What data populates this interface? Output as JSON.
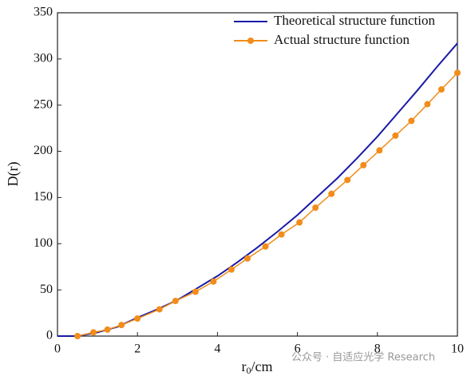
{
  "chart_data": {
    "type": "line",
    "x_label": [
      "r",
      "0",
      "/cm"
    ],
    "y_label": "D(r)",
    "xlim": [
      0,
      10
    ],
    "xticks": [
      0,
      2,
      4,
      6,
      8,
      10
    ],
    "ylim": [
      0,
      350
    ],
    "yticks": [
      0,
      50,
      100,
      150,
      200,
      250,
      300,
      350
    ],
    "legend": "top-right",
    "series": [
      {
        "name": "Theoretical structure function",
        "color": "#1a1aa6",
        "marker": false,
        "x": [
          0,
          0.5,
          1,
          1.5,
          2,
          2.5,
          3,
          3.5,
          4,
          4.5,
          5,
          5.5,
          6,
          6.5,
          7,
          7.5,
          8,
          8.5,
          9,
          9.5,
          10
        ],
        "values": [
          0,
          0,
          4,
          10,
          20,
          29,
          39,
          52,
          65,
          80,
          96,
          113,
          131,
          151,
          171,
          193,
          216,
          241,
          266,
          292,
          317
        ]
      },
      {
        "name": "Actual structure function",
        "color": "#f28c1a",
        "marker": true,
        "x": [
          0.5,
          0.9,
          1.25,
          1.6,
          2.0,
          2.55,
          2.95,
          3.45,
          3.9,
          4.35,
          4.75,
          5.2,
          5.6,
          6.05,
          6.45,
          6.85,
          7.25,
          7.65,
          8.05,
          8.45,
          8.85,
          9.25,
          9.6,
          10
        ],
        "values": [
          0,
          4,
          7,
          12,
          19,
          29,
          38,
          48,
          59,
          72,
          84,
          97,
          110,
          123,
          139,
          154,
          169,
          185,
          201,
          217,
          233,
          251,
          267,
          285
        ]
      }
    ],
    "watermark": "公众号 · 自适应光学 Research"
  }
}
